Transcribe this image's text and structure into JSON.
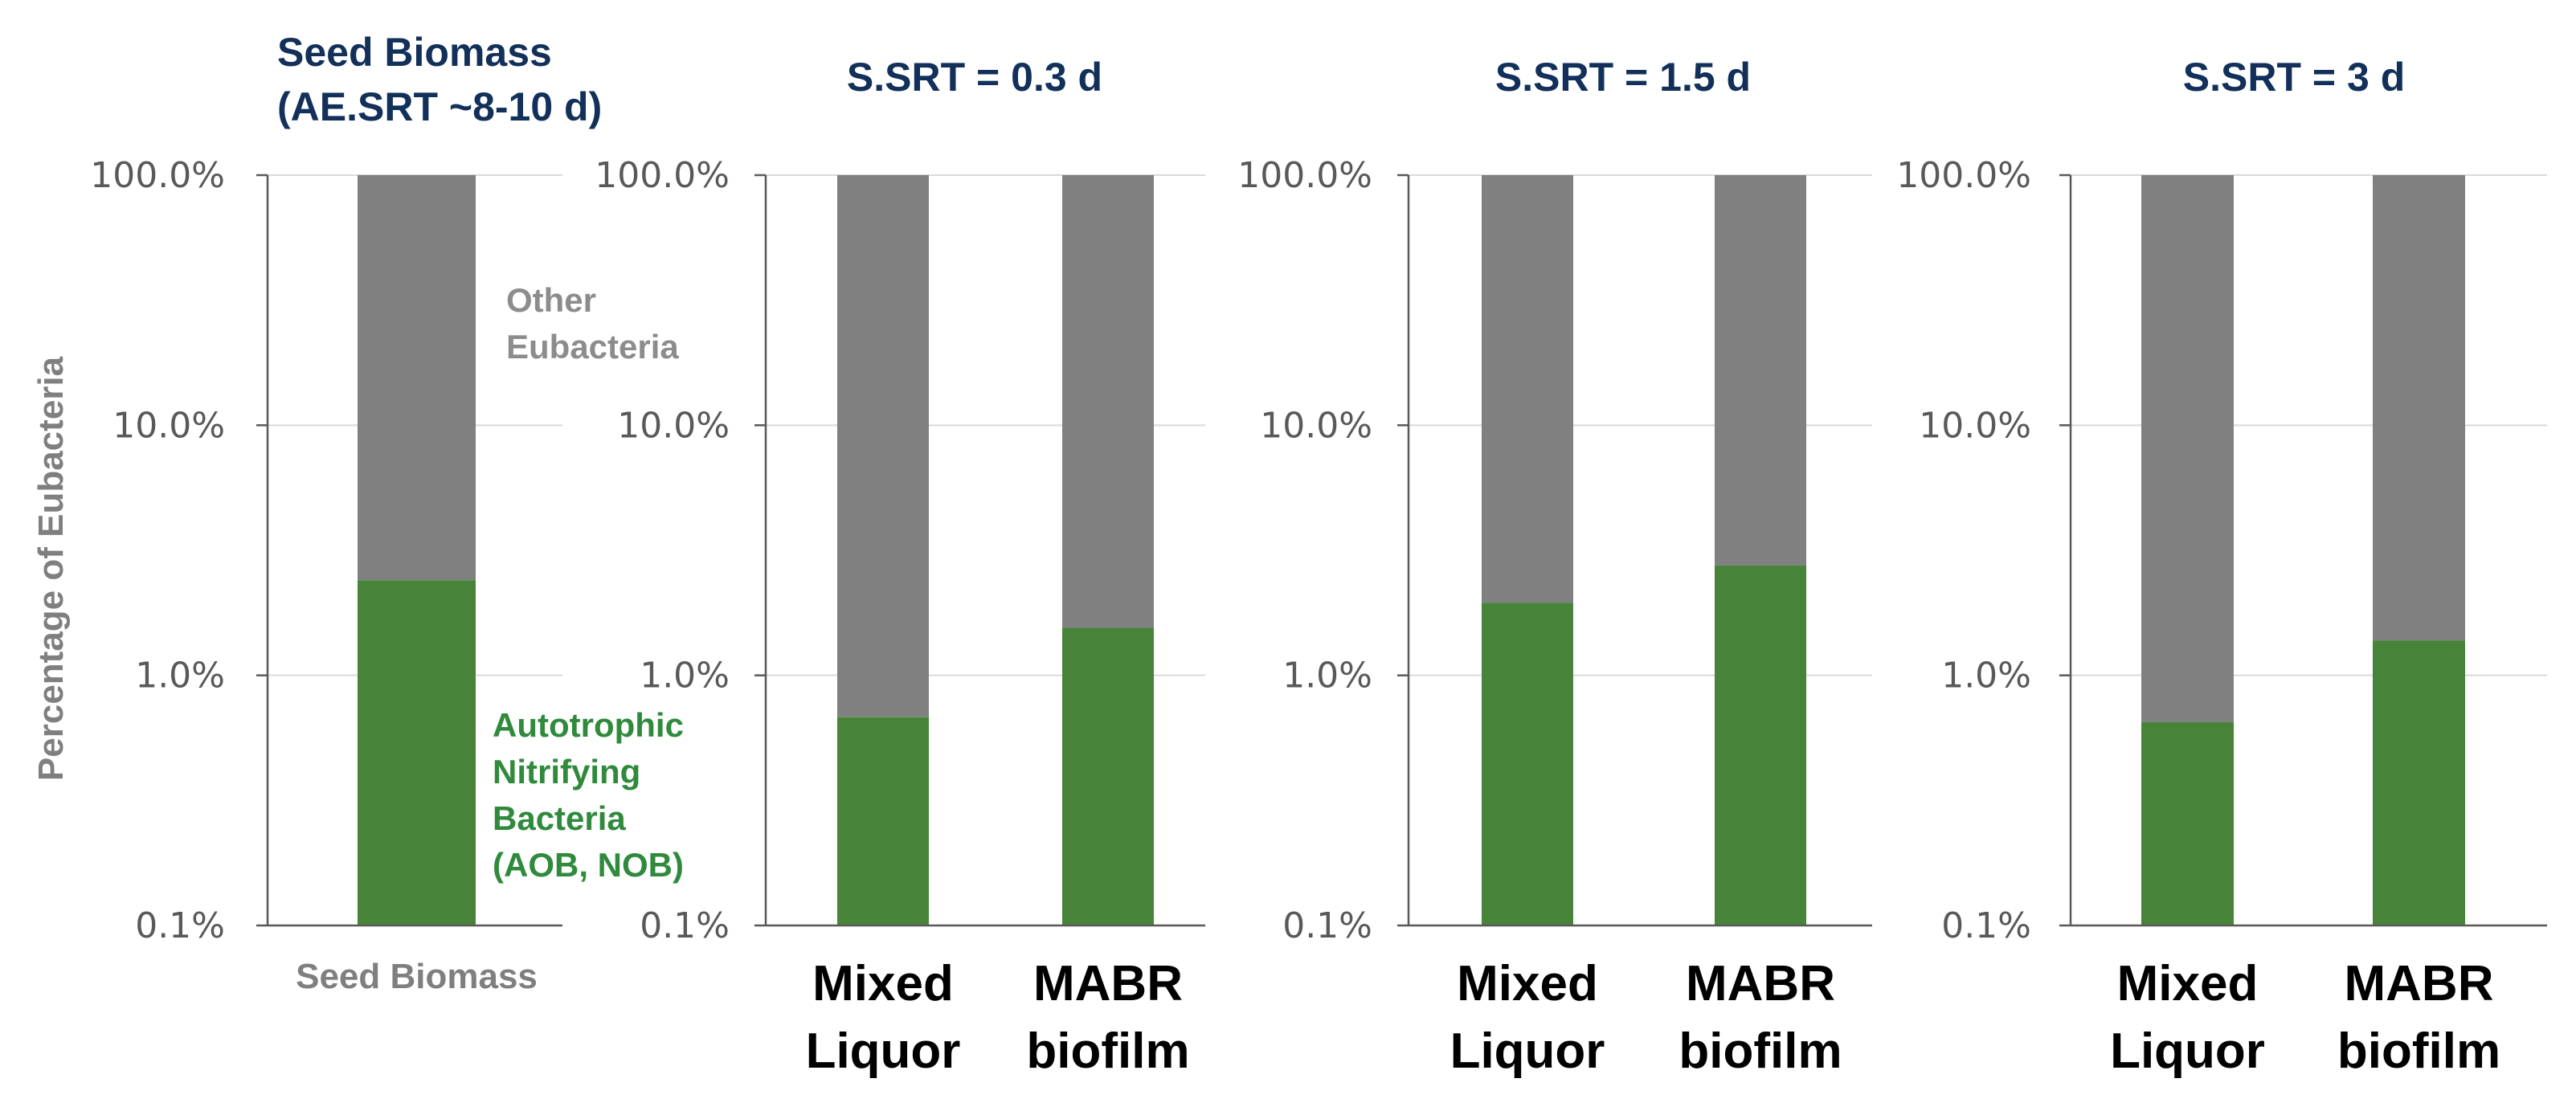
{
  "colors": {
    "other": "#808080",
    "autotrophic": "#47843a",
    "grid": "#d9d9d9",
    "axis": "#595959",
    "title": "#12305a"
  },
  "y_axis_label": "Percentage of Eubacteria",
  "annotations": {
    "other": [
      "Other",
      "Eubacteria"
    ],
    "autotrophic": [
      "Autotrophic",
      "Nitrifying",
      "Bacteria",
      "(AOB, NOB)"
    ]
  },
  "chart_data": [
    {
      "type": "bar",
      "stacked": true,
      "y_scale": "log",
      "title": [
        "Seed Biomass",
        "(AE.SRT ~8-10 d)"
      ],
      "ylim": [
        0.1,
        100
      ],
      "y_ticks": [
        "0.1%",
        "1.0%",
        "10.0%",
        "100.0%"
      ],
      "categories": [
        [
          "Seed Biomass"
        ]
      ],
      "series": [
        {
          "name": "Autotrophic Nitrifying Bacteria (AOB, NOB)",
          "values": [
            2.4
          ]
        },
        {
          "name": "Other Eubacteria",
          "values": [
            97.6
          ]
        }
      ],
      "grid": true
    },
    {
      "type": "bar",
      "stacked": true,
      "y_scale": "log",
      "title": [
        "S.SRT = 0.3 d"
      ],
      "ylim": [
        0.1,
        100
      ],
      "y_ticks": [
        "0.1%",
        "1.0%",
        "10.0%",
        "100.0%"
      ],
      "categories": [
        [
          "Mixed",
          "Liquor"
        ],
        [
          "MABR",
          "biofilm"
        ]
      ],
      "series": [
        {
          "name": "Autotrophic Nitrifying Bacteria (AOB, NOB)",
          "values": [
            0.68,
            1.55
          ]
        },
        {
          "name": "Other Eubacteria",
          "values": [
            99.32,
            98.45
          ]
        }
      ],
      "grid": true
    },
    {
      "type": "bar",
      "stacked": true,
      "y_scale": "log",
      "title": [
        "S.SRT = 1.5 d"
      ],
      "ylim": [
        0.1,
        100
      ],
      "y_ticks": [
        "0.1%",
        "1.0%",
        "10.0%",
        "100.0%"
      ],
      "categories": [
        [
          "Mixed",
          "Liquor"
        ],
        [
          "MABR",
          "biofilm"
        ]
      ],
      "series": [
        {
          "name": "Autotrophic Nitrifying Bacteria (AOB, NOB)",
          "values": [
            1.95,
            2.75
          ]
        },
        {
          "name": "Other Eubacteria",
          "values": [
            98.05,
            97.25
          ]
        }
      ],
      "grid": true
    },
    {
      "type": "bar",
      "stacked": true,
      "y_scale": "log",
      "title": [
        "S.SRT = 3 d"
      ],
      "ylim": [
        0.1,
        100
      ],
      "y_ticks": [
        "0.1%",
        "1.0%",
        "10.0%",
        "100.0%"
      ],
      "categories": [
        [
          "Mixed",
          "Liquor"
        ],
        [
          "MABR",
          "biofilm"
        ]
      ],
      "series": [
        {
          "name": "Autotrophic Nitrifying Bacteria (AOB, NOB)",
          "values": [
            0.65,
            1.38
          ]
        },
        {
          "name": "Other Eubacteria",
          "values": [
            99.35,
            98.62
          ]
        }
      ],
      "grid": true
    }
  ]
}
